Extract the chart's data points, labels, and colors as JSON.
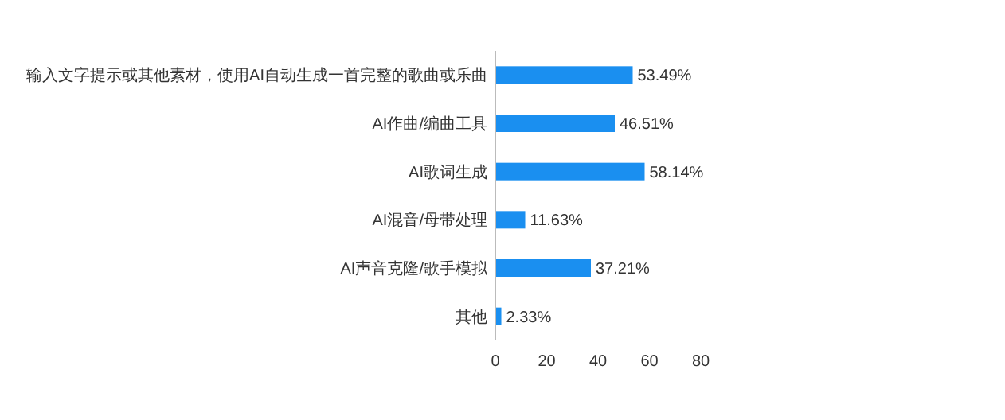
{
  "chart_data": {
    "type": "bar",
    "orientation": "horizontal",
    "categories": [
      "输入文字提示或其他素材，使用AI自动生成一首完整的歌曲或乐曲",
      "AI作曲/编曲工具",
      "AI歌词生成",
      "AI混音/母带处理",
      "AI声音克隆/歌手模拟",
      "其他"
    ],
    "values": [
      53.49,
      46.51,
      58.14,
      11.63,
      37.21,
      2.33
    ],
    "value_labels": [
      "53.49%",
      "46.51%",
      "58.14%",
      "11.63%",
      "37.21%",
      "2.33%"
    ],
    "color": "#1a8ff0",
    "xlim": [
      0,
      80
    ],
    "xticks": [
      0,
      20,
      40,
      60,
      80
    ]
  }
}
